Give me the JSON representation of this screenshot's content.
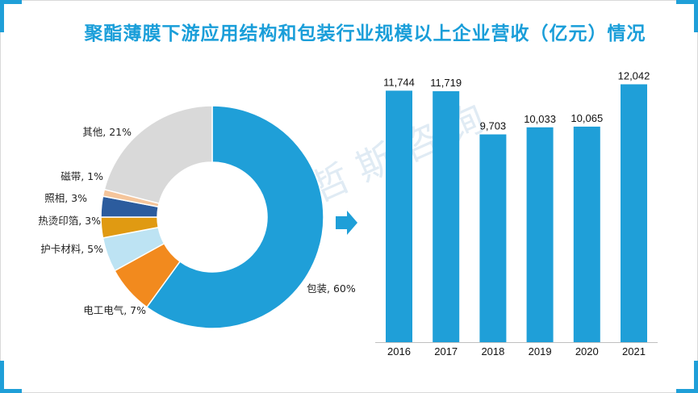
{
  "title": "聚酯薄膜下游应用结构和包装行业规模以上企业营收（亿元）情况",
  "watermark": "贝 哲 斯 咨 询",
  "colors": {
    "accent": "#1f9fd8",
    "bar": "#1f9fd8"
  },
  "chart_data": [
    {
      "type": "pie",
      "variant": "donut",
      "title": "聚酯薄膜下游应用结构",
      "categories": [
        "包装",
        "电工电气",
        "护卡材料",
        "热烫印箔",
        "照相",
        "磁带",
        "其他"
      ],
      "values": [
        60,
        7,
        5,
        3,
        3,
        1,
        21
      ],
      "labels": [
        "包装, 60%",
        "电工电气, 7%",
        "护卡材料, 5%",
        "热烫印箔, 3%",
        "照相, 3%",
        "磁带, 1%",
        "其他, 21%"
      ],
      "colors": [
        "#1f9fd8",
        "#f28a1e",
        "#bde3f3",
        "#e09a12",
        "#2c5c9e",
        "#f5c59b",
        "#d9d9d9"
      ]
    },
    {
      "type": "bar",
      "title": "包装行业规模以上企业营收（亿元）",
      "categories": [
        "2016",
        "2017",
        "2018",
        "2019",
        "2020",
        "2021"
      ],
      "values": [
        11744,
        11719,
        9703,
        10033,
        10065,
        12042
      ],
      "value_labels": [
        "11,744",
        "11,719",
        "9,703",
        "10,033",
        "10,065",
        "12,042"
      ],
      "ylim": [
        0,
        12700
      ],
      "xlabel": "",
      "ylabel": ""
    }
  ]
}
